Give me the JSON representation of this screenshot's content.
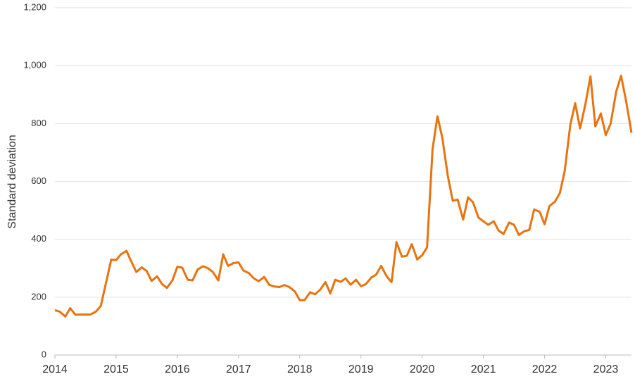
{
  "chart_data": {
    "type": "line",
    "y_label": "Standard deviation",
    "x": [
      2014,
      2014.08,
      2014.17,
      2014.25,
      2014.33,
      2014.42,
      2014.5,
      2014.58,
      2014.67,
      2014.75,
      2014.83,
      2014.92,
      2015,
      2015.08,
      2015.17,
      2015.25,
      2015.33,
      2015.42,
      2015.5,
      2015.58,
      2015.67,
      2015.75,
      2015.83,
      2015.92,
      2016,
      2016.08,
      2016.17,
      2016.25,
      2016.33,
      2016.42,
      2016.5,
      2016.58,
      2016.67,
      2016.75,
      2016.83,
      2016.92,
      2017,
      2017.08,
      2017.17,
      2017.25,
      2017.33,
      2017.42,
      2017.5,
      2017.58,
      2017.67,
      2017.75,
      2017.83,
      2017.92,
      2018,
      2018.08,
      2018.17,
      2018.25,
      2018.33,
      2018.42,
      2018.5,
      2018.58,
      2018.67,
      2018.75,
      2018.83,
      2018.92,
      2019,
      2019.08,
      2019.17,
      2019.25,
      2019.33,
      2019.42,
      2019.5,
      2019.58,
      2019.67,
      2019.75,
      2019.83,
      2019.92,
      2020,
      2020.08,
      2020.17,
      2020.25,
      2020.33,
      2020.42,
      2020.5,
      2020.58,
      2020.67,
      2020.75,
      2020.83,
      2020.92,
      2021,
      2021.08,
      2021.17,
      2021.25,
      2021.33,
      2021.42,
      2021.5,
      2021.58,
      2021.67,
      2021.75,
      2021.83,
      2021.92,
      2022,
      2022.08,
      2022.17,
      2022.25,
      2022.33,
      2022.42,
      2022.5,
      2022.58,
      2022.67,
      2022.75,
      2022.83,
      2022.92,
      2023,
      2023.08,
      2023.17,
      2023.25,
      2023.33,
      2023.42
    ],
    "series": [
      {
        "color": "#e8730f",
        "values": [
          155,
          150,
          133,
          162,
          140,
          140,
          140,
          140,
          150,
          170,
          245,
          330,
          328,
          348,
          360,
          322,
          287,
          303,
          290,
          256,
          272,
          245,
          232,
          258,
          305,
          302,
          260,
          258,
          295,
          307,
          300,
          287,
          258,
          348,
          308,
          318,
          320,
          292,
          283,
          265,
          255,
          270,
          243,
          237,
          235,
          242,
          235,
          220,
          190,
          190,
          217,
          210,
          225,
          252,
          213,
          260,
          253,
          265,
          243,
          260,
          238,
          245,
          268,
          278,
          308,
          272,
          252,
          390,
          340,
          343,
          383,
          330,
          345,
          372,
          712,
          825,
          750,
          618,
          533,
          537,
          468,
          545,
          528,
          475,
          462,
          450,
          462,
          430,
          418,
          458,
          450,
          415,
          428,
          432,
          503,
          495,
          452,
          515,
          530,
          560,
          637,
          795,
          870,
          783,
          870,
          963,
          790,
          835,
          760,
          800,
          910,
          965,
          880,
          768
        ]
      }
    ],
    "xlim": [
      2014,
      2023.42
    ],
    "xticks": [
      2014,
      2015,
      2016,
      2017,
      2018,
      2019,
      2020,
      2021,
      2022,
      2023
    ],
    "ylim": [
      0,
      1200
    ],
    "yticks": [
      0,
      200,
      400,
      600,
      800,
      {
        "value": 1000,
        "label": "1,000"
      },
      {
        "value": 1200,
        "label": "1,200"
      }
    ],
    "grid": true
  }
}
